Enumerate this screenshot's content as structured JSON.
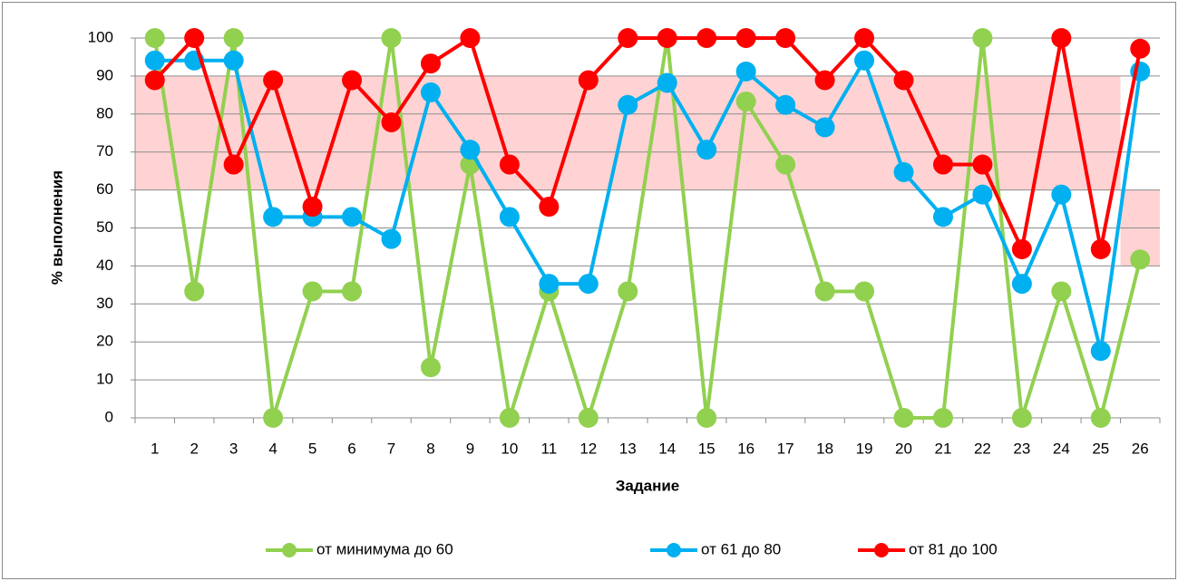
{
  "chart_data": {
    "type": "line",
    "xlabel": "Задание",
    "ylabel": "% выполнения",
    "categories": [
      "1",
      "2",
      "3",
      "4",
      "5",
      "6",
      "7",
      "8",
      "9",
      "10",
      "11",
      "12",
      "13",
      "14",
      "15",
      "16",
      "17",
      "18",
      "19",
      "20",
      "21",
      "22",
      "23",
      "24",
      "25",
      "26"
    ],
    "series": [
      {
        "name": "от минимума до 60",
        "color": "#92d050",
        "values": [
          100,
          33.3,
          100,
          0,
          33.3,
          33.3,
          100,
          13.3,
          66.7,
          0,
          33.3,
          0,
          33.3,
          100,
          0,
          83.3,
          66.7,
          33.3,
          33.3,
          0,
          0,
          100,
          0,
          33.3,
          0,
          41.7
        ]
      },
      {
        "name": "от 61 до 80",
        "color": "#00b0f0",
        "values": [
          94.1,
          94.1,
          94.1,
          52.9,
          52.9,
          52.9,
          47.1,
          85.7,
          70.6,
          52.9,
          35.3,
          35.3,
          82.4,
          88.2,
          70.6,
          91.2,
          82.4,
          76.5,
          94.1,
          64.7,
          52.9,
          58.8,
          35.3,
          58.8,
          17.6,
          91.2
        ]
      },
      {
        "name": "от 81 до 100",
        "color": "#ff0000",
        "values": [
          88.9,
          100,
          66.7,
          88.9,
          55.6,
          88.9,
          77.8,
          93.3,
          100,
          66.7,
          55.6,
          88.9,
          100,
          100,
          100,
          100,
          100,
          88.9,
          100,
          88.9,
          66.7,
          66.7,
          44.4,
          100,
          44.4,
          97.2
        ]
      }
    ],
    "bands": [
      {
        "from": 60,
        "to": 90,
        "start_index": 0,
        "end_index": 24,
        "color": "#ffd3d3"
      },
      {
        "from": 40,
        "to": 60,
        "start_index": 25,
        "end_index": 25,
        "color": "#ffd3d3"
      }
    ],
    "ylim": [
      0,
      100
    ],
    "yticks": [
      0,
      10,
      20,
      30,
      40,
      50,
      60,
      70,
      80,
      90,
      100
    ],
    "grid": true,
    "legend": "bottom"
  }
}
